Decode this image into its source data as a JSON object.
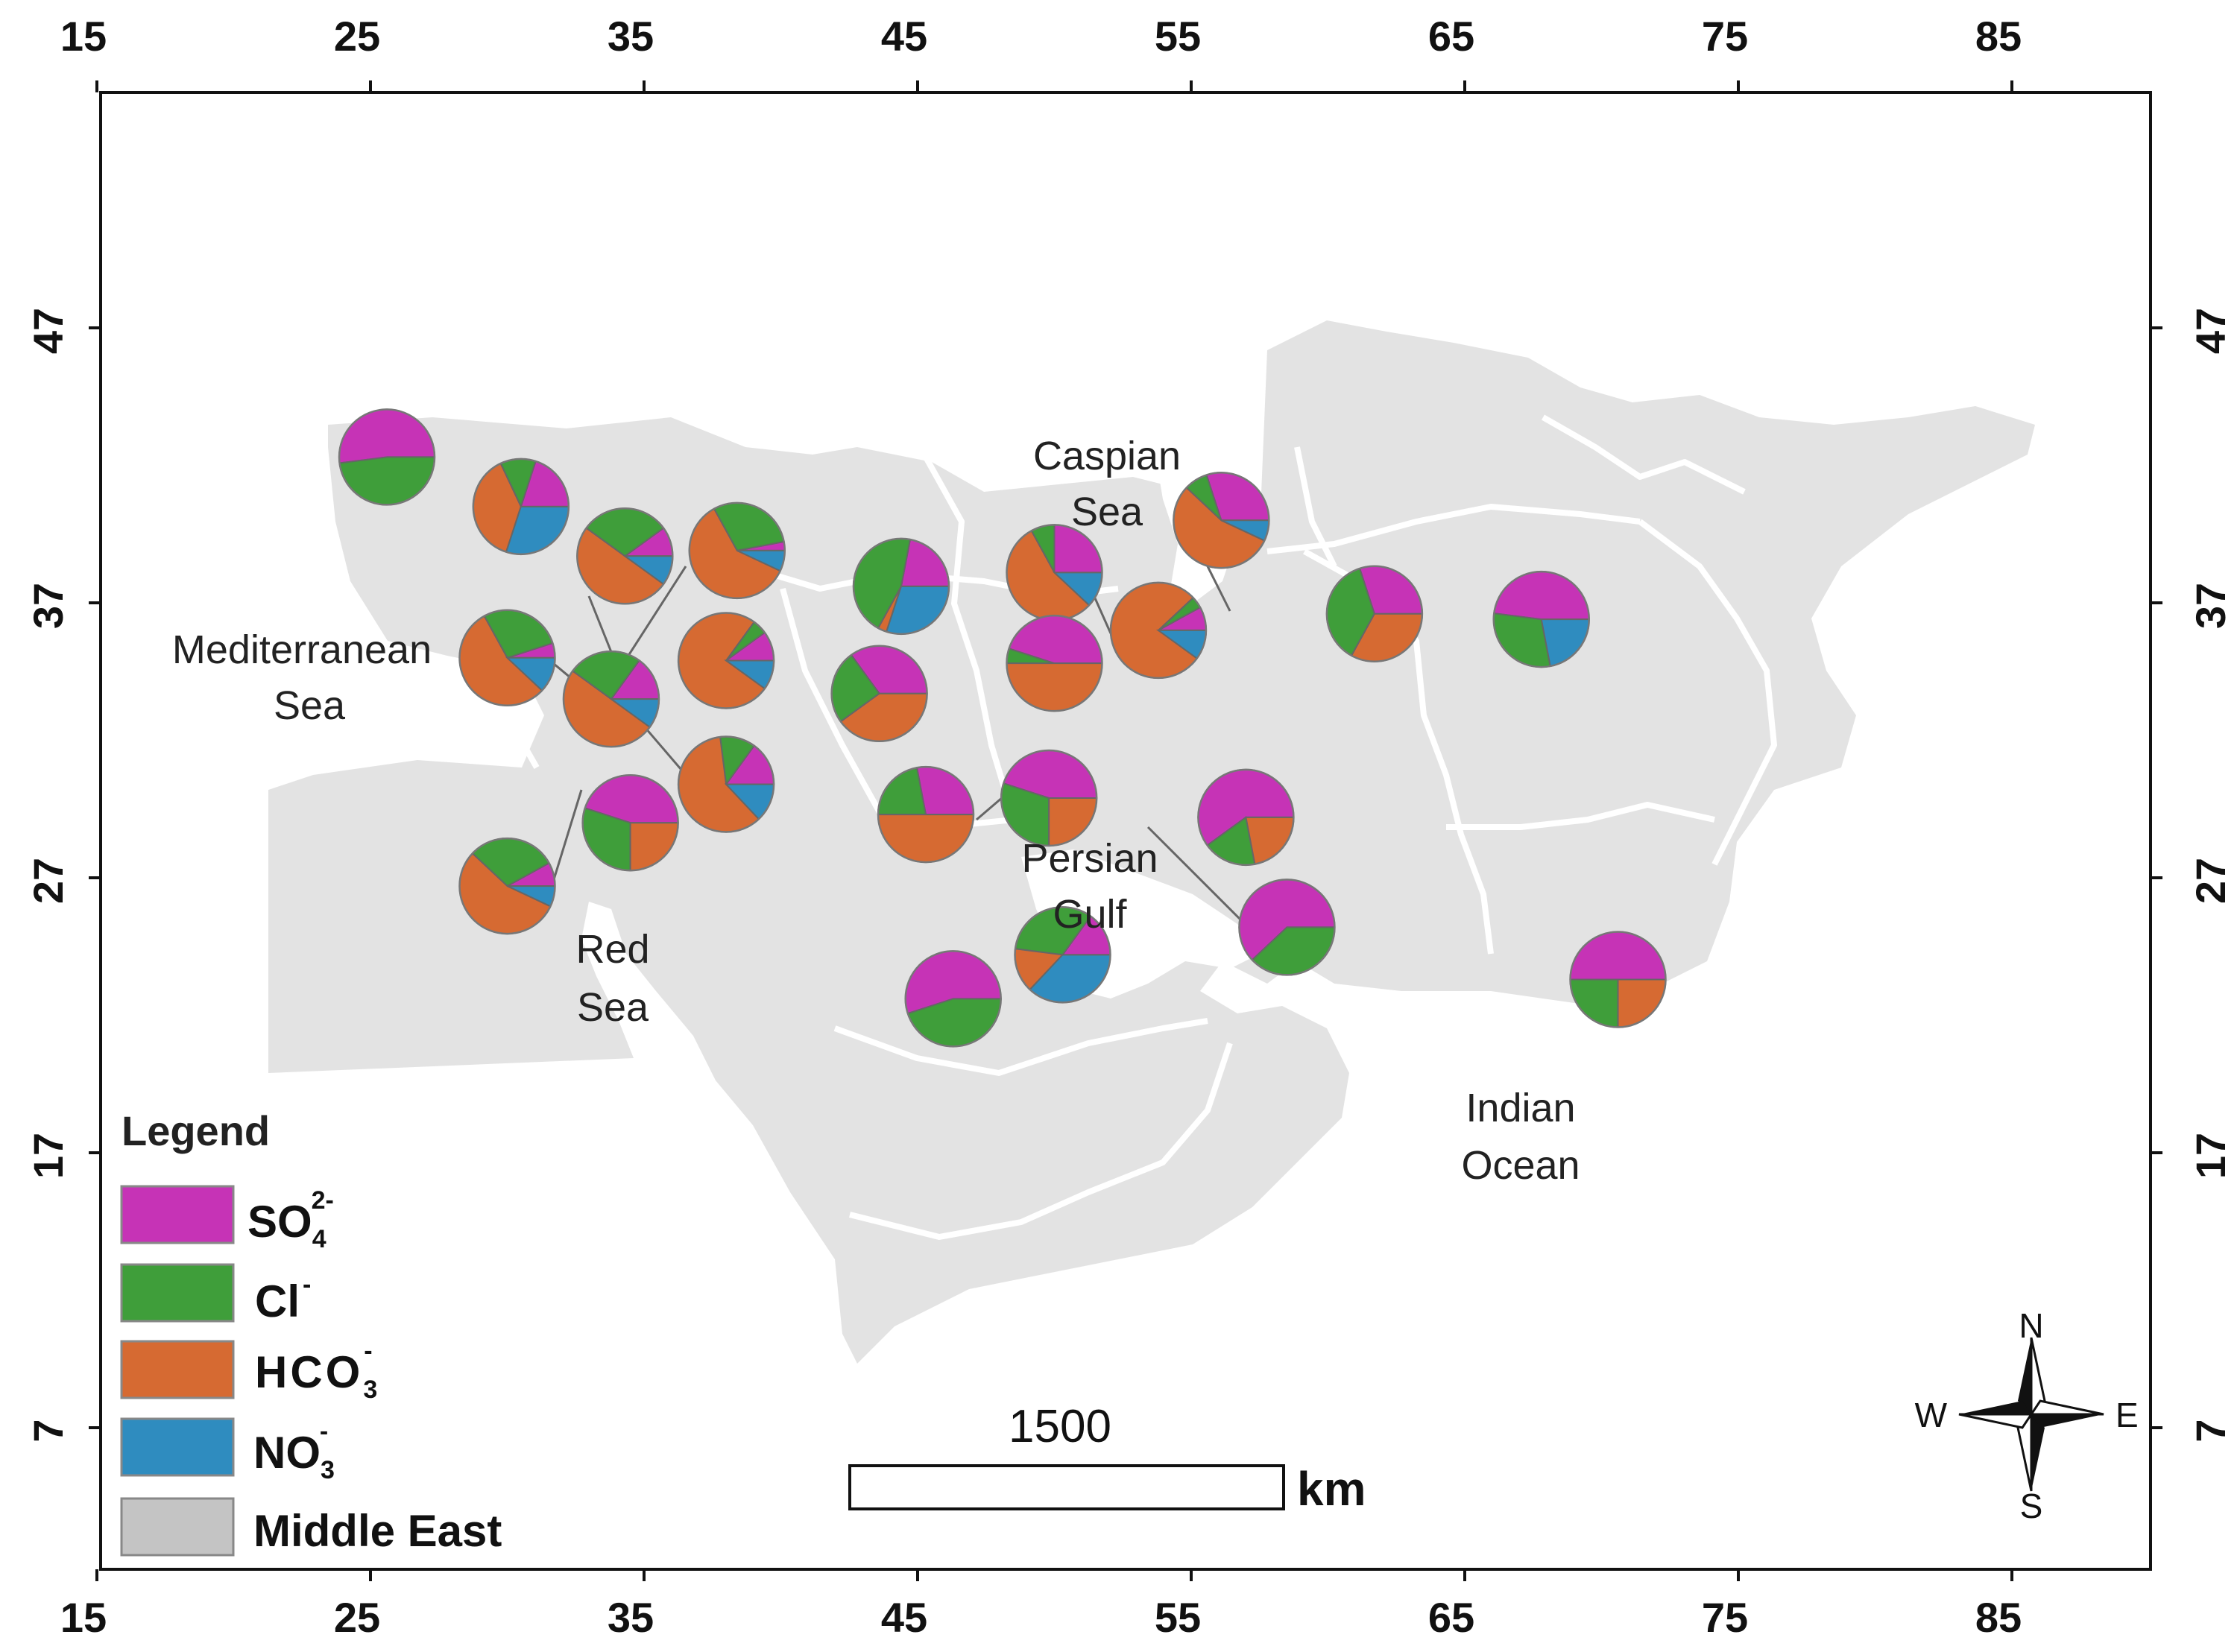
{
  "map": {
    "x_ticks": [
      "15",
      "25",
      "35",
      "45",
      "55",
      "65",
      "75",
      "85"
    ],
    "y_ticks": [
      "47",
      "37",
      "27",
      "17",
      "7"
    ],
    "seas": [
      {
        "lines": [
          "Caspian",
          "Sea"
        ]
      },
      {
        "lines": [
          "Mediterranean",
          "Sea"
        ]
      },
      {
        "lines": [
          "Red",
          "Sea"
        ]
      },
      {
        "lines": [
          "Persian",
          "Gulf"
        ]
      },
      {
        "lines": [
          "Indian",
          "Ocean"
        ]
      }
    ]
  },
  "colors": {
    "so4": "#c633b6",
    "cl": "#3f9e3a",
    "hco3": "#d66a32",
    "no3": "#2f8cbf",
    "land": "#e3e3e3",
    "border": "#ffffff"
  },
  "legend": {
    "title": "Legend",
    "items": [
      {
        "key": "so4",
        "base": "SO",
        "sub": "4",
        "sup": "2-"
      },
      {
        "key": "cl",
        "base": "Cl",
        "sub": "",
        "sup": "-"
      },
      {
        "key": "hco3",
        "base": "HCO",
        "sub": "3",
        "sup": "-"
      },
      {
        "key": "no3",
        "base": "NO",
        "sub": "3",
        "sup": "-"
      },
      {
        "key": "me",
        "base": "Middle East",
        "sub": "",
        "sup": ""
      }
    ]
  },
  "scale_bar": {
    "value": "1500",
    "unit": "km"
  },
  "compass": {
    "n": "N",
    "s": "S",
    "e": "E",
    "w": "W"
  },
  "pies": [
    {
      "lon": 25.6,
      "lat": 42.3,
      "fractions": {
        "so4": 0.52,
        "cl": 0.48,
        "hco3": 0,
        "no3": 0
      }
    },
    {
      "lon": 30.5,
      "lat": 40.5,
      "fractions": {
        "so4": 0.2,
        "cl": 0.12,
        "hco3": 0.38,
        "no3": 0.3
      }
    },
    {
      "lon": 34.3,
      "lat": 38.7,
      "fractions": {
        "so4": 0.1,
        "cl": 0.3,
        "hco3": 0.5,
        "no3": 0.1
      }
    },
    {
      "lon": 38.4,
      "lat": 38.9,
      "fractions": {
        "so4": 0.03,
        "cl": 0.3,
        "hco3": 0.6,
        "no3": 0.07
      }
    },
    {
      "lon": 44.4,
      "lat": 37.6,
      "fractions": {
        "so4": 0.22,
        "cl": 0.45,
        "hco3": 0.03,
        "no3": 0.3
      }
    },
    {
      "lon": 50.0,
      "lat": 38.1,
      "fractions": {
        "so4": 0.25,
        "cl": 0.08,
        "hco3": 0.55,
        "no3": 0.12
      }
    },
    {
      "lon": 56.1,
      "lat": 40.0,
      "fractions": {
        "so4": 0.3,
        "cl": 0.08,
        "hco3": 0.55,
        "no3": 0.07
      }
    },
    {
      "lon": 61.7,
      "lat": 36.6,
      "fractions": {
        "so4": 0.3,
        "cl": 0.37,
        "hco3": 0.33,
        "no3": 0
      }
    },
    {
      "lon": 67.8,
      "lat": 36.4,
      "fractions": {
        "so4": 0.48,
        "cl": 0.3,
        "hco3": 0,
        "no3": 0.22
      }
    },
    {
      "lon": 30.0,
      "lat": 35.0,
      "fractions": {
        "so4": 0.05,
        "cl": 0.28,
        "hco3": 0.55,
        "no3": 0.12
      }
    },
    {
      "lon": 33.8,
      "lat": 33.5,
      "fractions": {
        "so4": 0.15,
        "cl": 0.25,
        "hco3": 0.5,
        "no3": 0.1
      }
    },
    {
      "lon": 38.0,
      "lat": 34.9,
      "fractions": {
        "so4": 0.1,
        "cl": 0.05,
        "hco3": 0.75,
        "no3": 0.1
      }
    },
    {
      "lon": 43.6,
      "lat": 33.7,
      "fractions": {
        "so4": 0.35,
        "cl": 0.25,
        "hco3": 0.4,
        "no3": 0
      }
    },
    {
      "lon": 50.0,
      "lat": 34.8,
      "fractions": {
        "so4": 0.45,
        "cl": 0.05,
        "hco3": 0.5,
        "no3": 0
      }
    },
    {
      "lon": 53.8,
      "lat": 36.0,
      "fractions": {
        "so4": 0.08,
        "cl": 0.04,
        "hco3": 0.78,
        "no3": 0.1
      }
    },
    {
      "lon": 38.0,
      "lat": 30.4,
      "fractions": {
        "so4": 0.15,
        "cl": 0.12,
        "hco3": 0.6,
        "no3": 0.13
      }
    },
    {
      "lon": 34.5,
      "lat": 29.0,
      "fractions": {
        "so4": 0.45,
        "cl": 0.3,
        "hco3": 0.25,
        "no3": 0
      }
    },
    {
      "lon": 45.3,
      "lat": 29.3,
      "fractions": {
        "so4": 0.28,
        "cl": 0.22,
        "hco3": 0.5,
        "no3": 0
      }
    },
    {
      "lon": 49.8,
      "lat": 29.9,
      "fractions": {
        "so4": 0.45,
        "cl": 0.3,
        "hco3": 0.25,
        "no3": 0
      }
    },
    {
      "lon": 57.0,
      "lat": 29.2,
      "fractions": {
        "so4": 0.6,
        "cl": 0.18,
        "hco3": 0.22,
        "no3": 0
      }
    },
    {
      "lon": 30.0,
      "lat": 26.7,
      "fractions": {
        "so4": 0.08,
        "cl": 0.3,
        "hco3": 0.55,
        "no3": 0.07
      }
    },
    {
      "lon": 58.5,
      "lat": 25.2,
      "fractions": {
        "so4": 0.62,
        "cl": 0.38,
        "hco3": 0,
        "no3": 0
      }
    },
    {
      "lon": 50.3,
      "lat": 24.2,
      "fractions": {
        "so4": 0.15,
        "cl": 0.33,
        "hco3": 0.15,
        "no3": 0.37
      }
    },
    {
      "lon": 46.3,
      "lat": 22.6,
      "fractions": {
        "so4": 0.55,
        "cl": 0.45,
        "hco3": 0,
        "no3": 0
      }
    },
    {
      "lon": 70.6,
      "lat": 23.3,
      "fractions": {
        "so4": 0.5,
        "cl": 0.25,
        "hco3": 0.25,
        "no3": 0
      }
    }
  ]
}
